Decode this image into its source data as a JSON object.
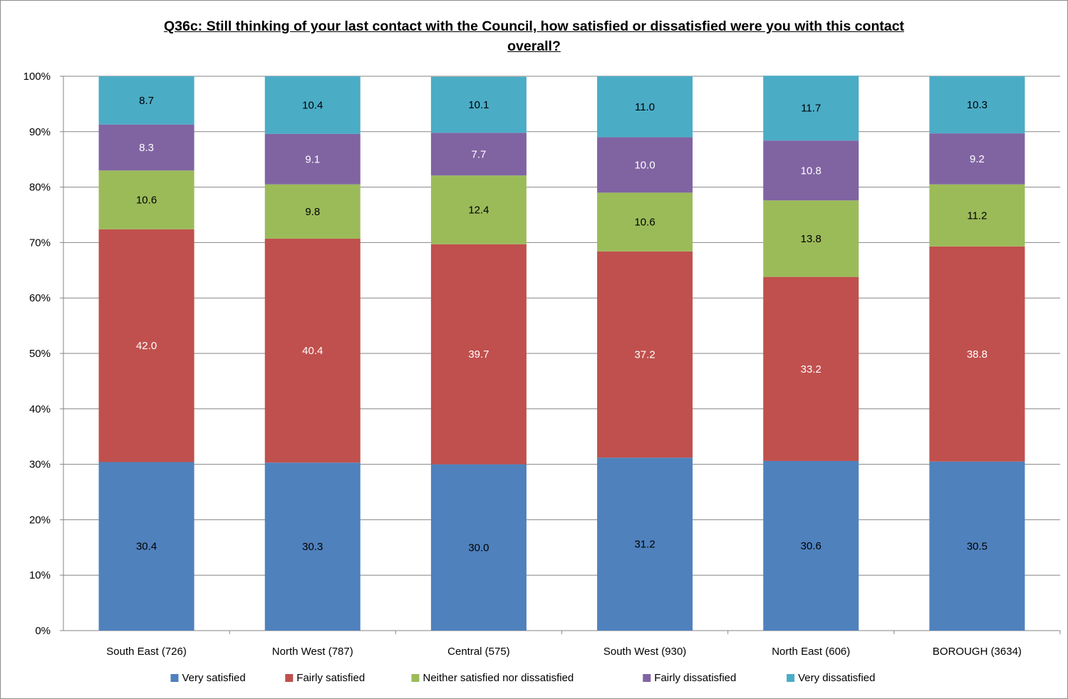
{
  "chart_data": {
    "type": "bar",
    "stacked": true,
    "title_line1": "Q36c: Still thinking of your last contact with the Council, how satisfied or dissatisfied were you with this contact",
    "title_line2": "overall?",
    "categories": [
      "South East (726)",
      "North West (787)",
      "Central (575)",
      "South West (930)",
      "North East (606)",
      "BOROUGH (3634)"
    ],
    "series": [
      {
        "name": "Very satisfied",
        "color": "#4f81bd",
        "label_color": "#000000",
        "values": [
          30.4,
          30.3,
          30.0,
          31.2,
          30.6,
          30.5
        ]
      },
      {
        "name": "Fairly satisfied",
        "color": "#c0504d",
        "label_color": "#ffffff",
        "values": [
          42.0,
          40.4,
          39.7,
          37.2,
          33.2,
          38.8
        ]
      },
      {
        "name": "Neither satisfied nor dissatisfied",
        "color": "#9bbb59",
        "label_color": "#000000",
        "values": [
          10.6,
          9.8,
          12.4,
          10.6,
          13.8,
          11.2
        ]
      },
      {
        "name": "Fairly dissatisfied",
        "color": "#8064a2",
        "label_color": "#ffffff",
        "values": [
          8.3,
          9.1,
          7.7,
          10.0,
          10.8,
          9.2
        ]
      },
      {
        "name": "Very dissatisfied",
        "color": "#4bacc6",
        "label_color": "#000000",
        "values": [
          8.7,
          10.4,
          10.1,
          11.0,
          11.7,
          10.3
        ]
      }
    ],
    "ylim": [
      0,
      100
    ],
    "yticks": [
      "0%",
      "10%",
      "20%",
      "30%",
      "40%",
      "50%",
      "60%",
      "70%",
      "80%",
      "90%",
      "100%"
    ],
    "grid": true,
    "legend_position": "bottom"
  }
}
